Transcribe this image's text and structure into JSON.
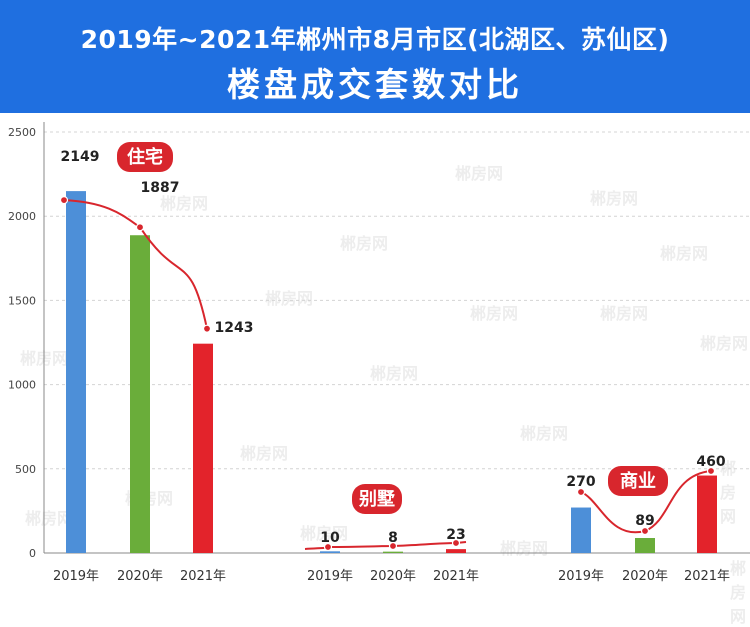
{
  "colors": {
    "header_bg": "#1f6fe0",
    "bar_2019": "#4d8fd8",
    "bar_2020": "#6aad3a",
    "bar_2021": "#e3232b",
    "trend_line": "#d8262d",
    "badge_bg": "#d8262d"
  },
  "header": {
    "line1": "2019年~2021年郴州市8月市区(北湖区、苏仙区)",
    "line2": "楼盘成交套数对比"
  },
  "watermark": {
    "text": "郴房网"
  },
  "chart_data": {
    "type": "bar",
    "ylim": [
      0,
      2500
    ],
    "yticks": [
      0,
      500,
      1000,
      1500,
      2000,
      2500
    ],
    "grid": true,
    "groups": [
      {
        "name": "住宅",
        "categories": [
          "2019年",
          "2020年",
          "2021年"
        ],
        "values": [
          2149,
          1887,
          1243
        ]
      },
      {
        "name": "别墅",
        "categories": [
          "2019年",
          "2020年",
          "2021年"
        ],
        "values": [
          10,
          8,
          23
        ]
      },
      {
        "name": "商业",
        "categories": [
          "2019年",
          "2020年",
          "2021年"
        ],
        "values": [
          270,
          89,
          460
        ]
      }
    ]
  }
}
